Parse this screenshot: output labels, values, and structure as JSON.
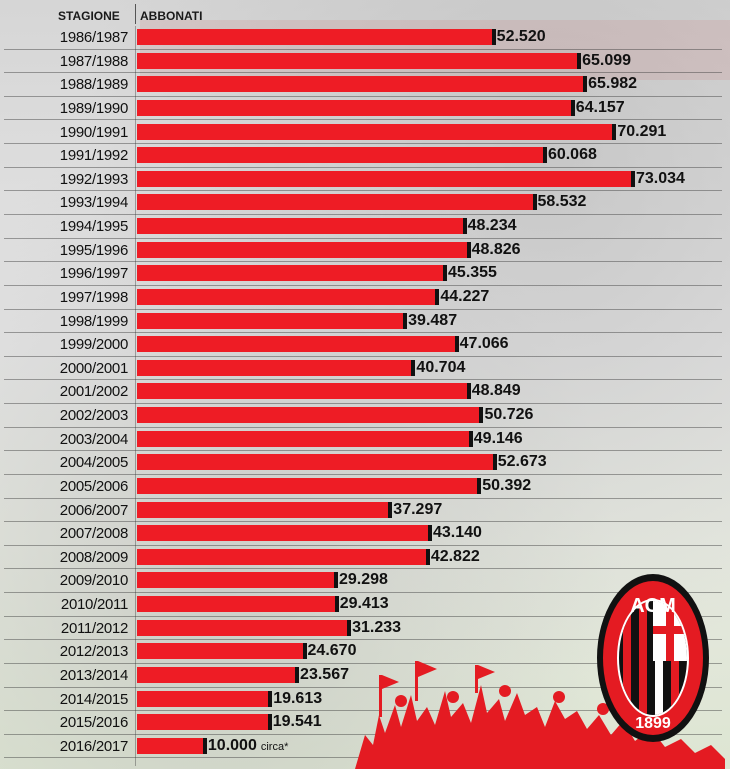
{
  "header": {
    "season_col": "STAGIONE",
    "value_col": "ABBONATI"
  },
  "logo": {
    "text_top": "ACM",
    "text_bottom": "1899"
  },
  "chart_data": {
    "type": "bar",
    "orientation": "horizontal",
    "xlabel": "ABBONATI",
    "ylabel": "STAGIONE",
    "colors": {
      "bar": "#ee1c25",
      "tick": "#111111"
    },
    "rows": [
      {
        "season": "1986/1987",
        "value": 52520,
        "label": "52.520"
      },
      {
        "season": "1987/1988",
        "value": 65099,
        "label": "65.099"
      },
      {
        "season": "1988/1989",
        "value": 65982,
        "label": "65.982"
      },
      {
        "season": "1989/1990",
        "value": 64157,
        "label": "64.157"
      },
      {
        "season": "1990/1991",
        "value": 70291,
        "label": "70.291"
      },
      {
        "season": "1991/1992",
        "value": 60068,
        "label": "60.068"
      },
      {
        "season": "1992/1993",
        "value": 73034,
        "label": "73.034"
      },
      {
        "season": "1993/1994",
        "value": 58532,
        "label": "58.532"
      },
      {
        "season": "1994/1995",
        "value": 48234,
        "label": "48.234"
      },
      {
        "season": "1995/1996",
        "value": 48826,
        "label": "48.826"
      },
      {
        "season": "1996/1997",
        "value": 45355,
        "label": "45.355"
      },
      {
        "season": "1997/1998",
        "value": 44227,
        "label": "44.227"
      },
      {
        "season": "1998/1999",
        "value": 39487,
        "label": "39.487"
      },
      {
        "season": "1999/2000",
        "value": 47066,
        "label": "47.066"
      },
      {
        "season": "2000/2001",
        "value": 40704,
        "label": "40.704"
      },
      {
        "season": "2001/2002",
        "value": 48849,
        "label": "48.849"
      },
      {
        "season": "2002/2003",
        "value": 50726,
        "label": "50.726"
      },
      {
        "season": "2003/2004",
        "value": 49146,
        "label": "49.146"
      },
      {
        "season": "2004/2005",
        "value": 52673,
        "label": "52.673"
      },
      {
        "season": "2005/2006",
        "value": 50392,
        "label": "50.392"
      },
      {
        "season": "2006/2007",
        "value": 37297,
        "label": "37.297"
      },
      {
        "season": "2007/2008",
        "value": 43140,
        "label": "43.140"
      },
      {
        "season": "2008/2009",
        "value": 42822,
        "label": "42.822"
      },
      {
        "season": "2009/2010",
        "value": 29298,
        "label": "29.298"
      },
      {
        "season": "2010/2011",
        "value": 29413,
        "label": "29.413"
      },
      {
        "season": "2011/2012",
        "value": 31233,
        "label": "31.233"
      },
      {
        "season": "2012/2013",
        "value": 24670,
        "label": "24.670"
      },
      {
        "season": "2013/2014",
        "value": 23567,
        "label": "23.567"
      },
      {
        "season": "2014/2015",
        "value": 19613,
        "label": "19.613"
      },
      {
        "season": "2015/2016",
        "value": 19541,
        "label": "19.541"
      },
      {
        "season": "2016/2017",
        "value": 10000,
        "label": "10.000",
        "note": "circa*"
      }
    ]
  }
}
